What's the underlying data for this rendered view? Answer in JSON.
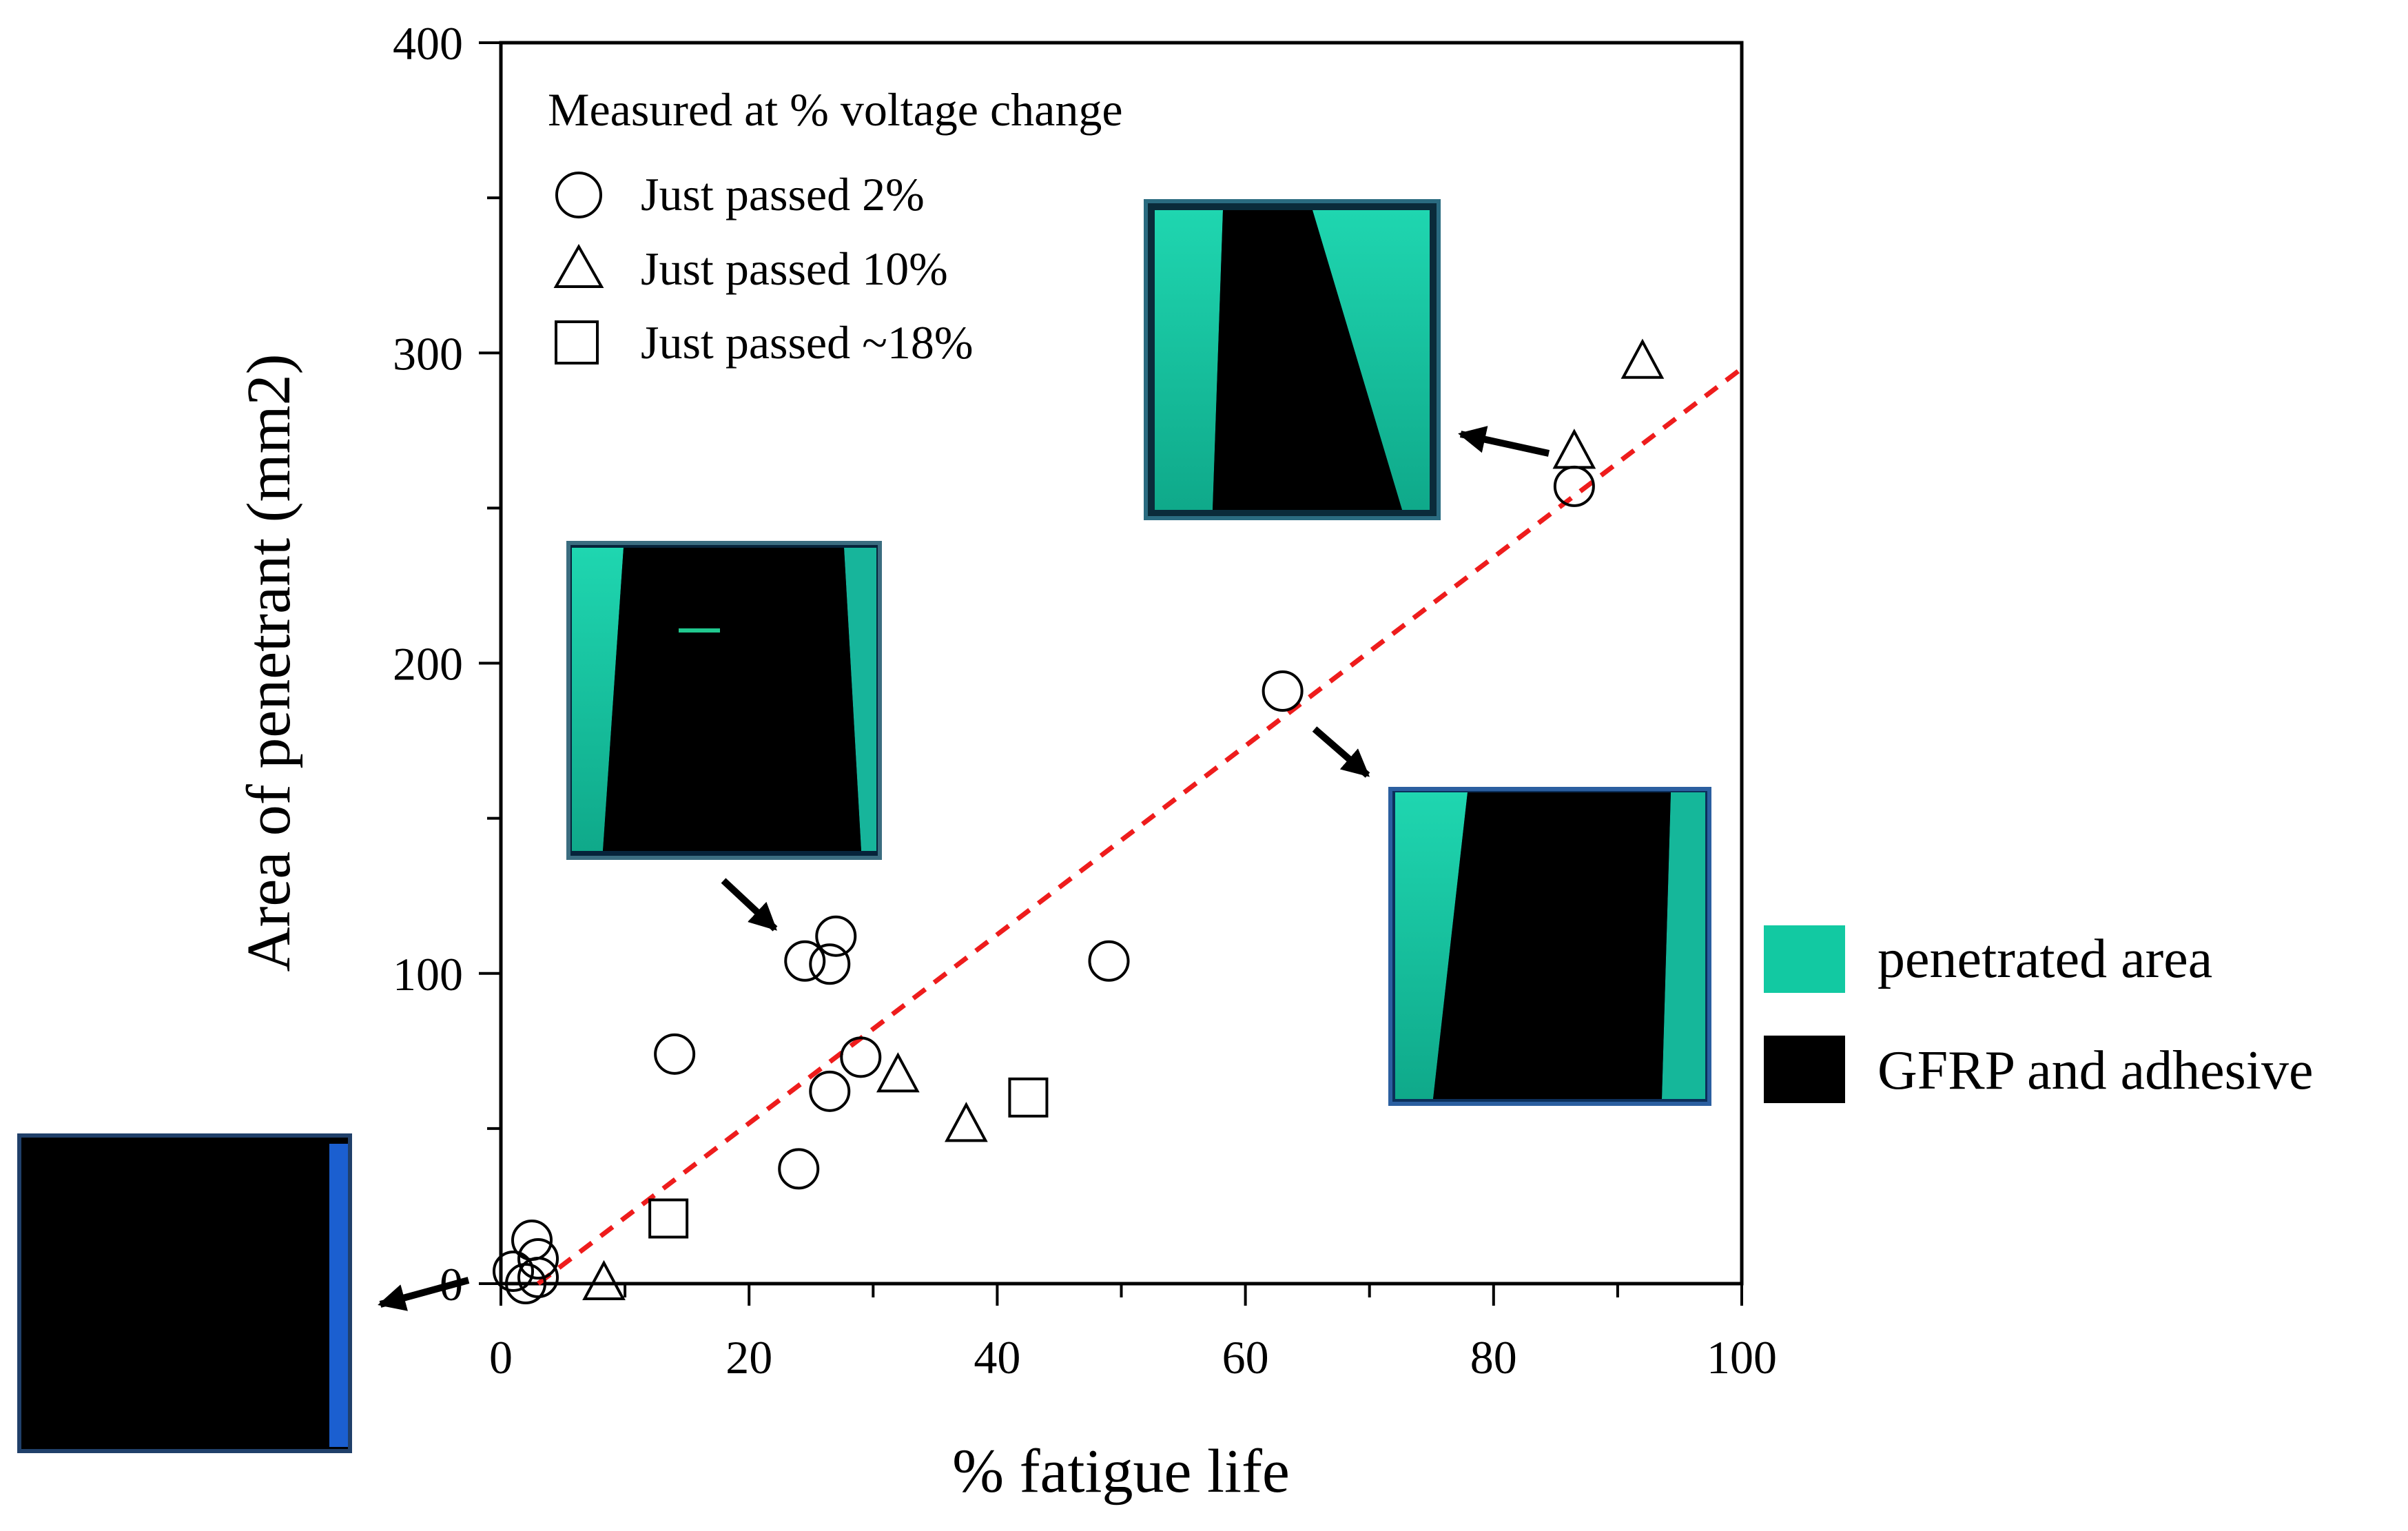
{
  "chart_data": {
    "type": "scatter",
    "xlabel": "% fatigue life",
    "ylabel": "Area of penetrant (mm2)",
    "xlim": [
      0,
      100
    ],
    "ylim": [
      0,
      400
    ],
    "xticks": [
      0,
      20,
      40,
      60,
      80,
      100
    ],
    "yticks": [
      0,
      100,
      200,
      300,
      400
    ],
    "grid": false,
    "legend_title": "Measured at % voltage change",
    "series": [
      {
        "name": "Just passed 2%",
        "marker": "circle",
        "points": [
          [
            1,
            4
          ],
          [
            2.5,
            14
          ],
          [
            3,
            8
          ],
          [
            2,
            0
          ],
          [
            3,
            2
          ],
          [
            14,
            74
          ],
          [
            24,
            37
          ],
          [
            24.5,
            104
          ],
          [
            26.5,
            103
          ],
          [
            27,
            112
          ],
          [
            26.5,
            62
          ],
          [
            29,
            73
          ],
          [
            49,
            104
          ],
          [
            63,
            191
          ],
          [
            86.5,
            257
          ]
        ]
      },
      {
        "name": "Just passed 10%",
        "marker": "triangle",
        "points": [
          [
            8.3,
            0
          ],
          [
            32,
            67
          ],
          [
            37.5,
            51
          ],
          [
            86.5,
            268
          ],
          [
            92,
            297
          ]
        ]
      },
      {
        "name": "Just passed ~18%",
        "marker": "square",
        "points": [
          [
            13.5,
            21
          ],
          [
            42.5,
            60
          ]
        ]
      }
    ],
    "fit_line": {
      "style": "dashed",
      "color": "#ee1c1c",
      "from": [
        3,
        0
      ],
      "to": [
        100,
        295
      ]
    },
    "color_legend": [
      {
        "label": "penetrated area",
        "color": "#12c9a2"
      },
      {
        "label": "GFRP and adhesive",
        "color": "#000000"
      }
    ],
    "inset_images": [
      {
        "name": "specimen-at-origin",
        "linked_point": [
          3,
          2
        ]
      },
      {
        "name": "specimen-at-26pct",
        "linked_point": [
          24.5,
          104
        ]
      },
      {
        "name": "specimen-at-63pct",
        "linked_point": [
          63,
          191
        ]
      },
      {
        "name": "specimen-at-86pct",
        "linked_point": [
          86.5,
          268
        ]
      }
    ]
  }
}
